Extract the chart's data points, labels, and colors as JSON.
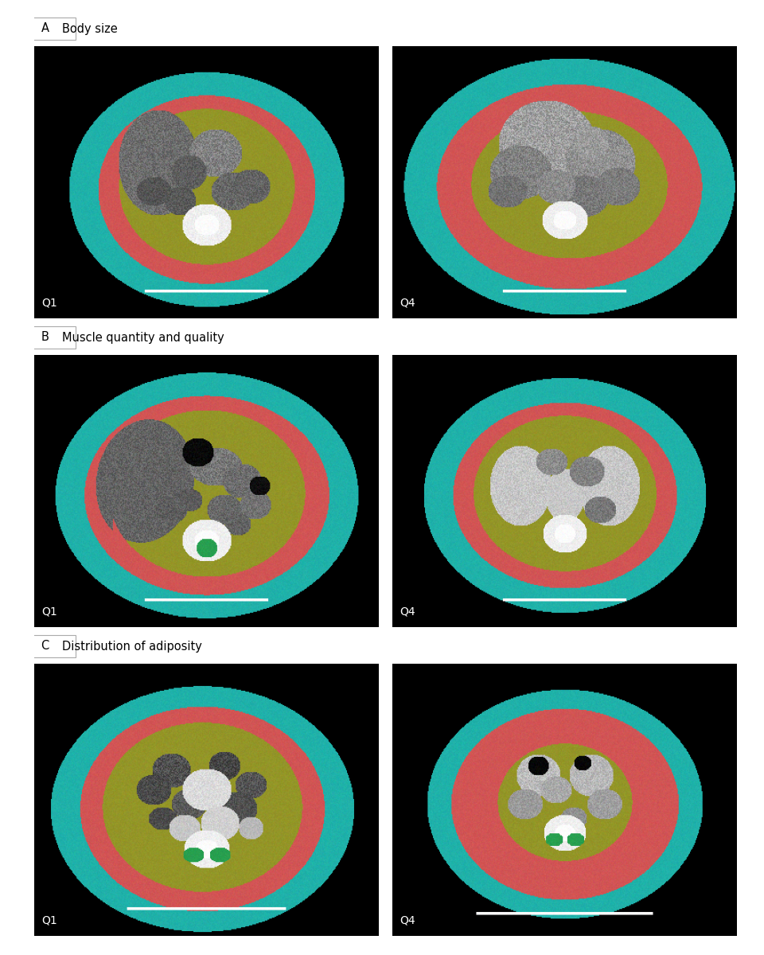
{
  "sections": [
    {
      "label": "A",
      "title": "Body size",
      "captions": [
        "Q1",
        "Q4"
      ]
    },
    {
      "label": "B",
      "title": "Muscle quantity and quality",
      "captions": [
        "Q1",
        "Q4"
      ]
    },
    {
      "label": "C",
      "title": "Distribution of adiposity",
      "captions": [
        "Q1",
        "Q4"
      ]
    }
  ],
  "background_color": "#ffffff",
  "label_box_edge": "#aaaaaa",
  "title_fontsize": 10.5,
  "label_fontsize": 10.5,
  "caption_fontsize": 10,
  "caption_color": "#ffffff",
  "figure_width": 9.6,
  "figure_height": 12.0,
  "teal": [
    32,
    178,
    170
  ],
  "salmon": [
    210,
    85,
    85
  ],
  "olive": [
    148,
    150,
    40
  ],
  "dark_red": [
    180,
    50,
    50
  ],
  "green_small": [
    40,
    160,
    80
  ]
}
